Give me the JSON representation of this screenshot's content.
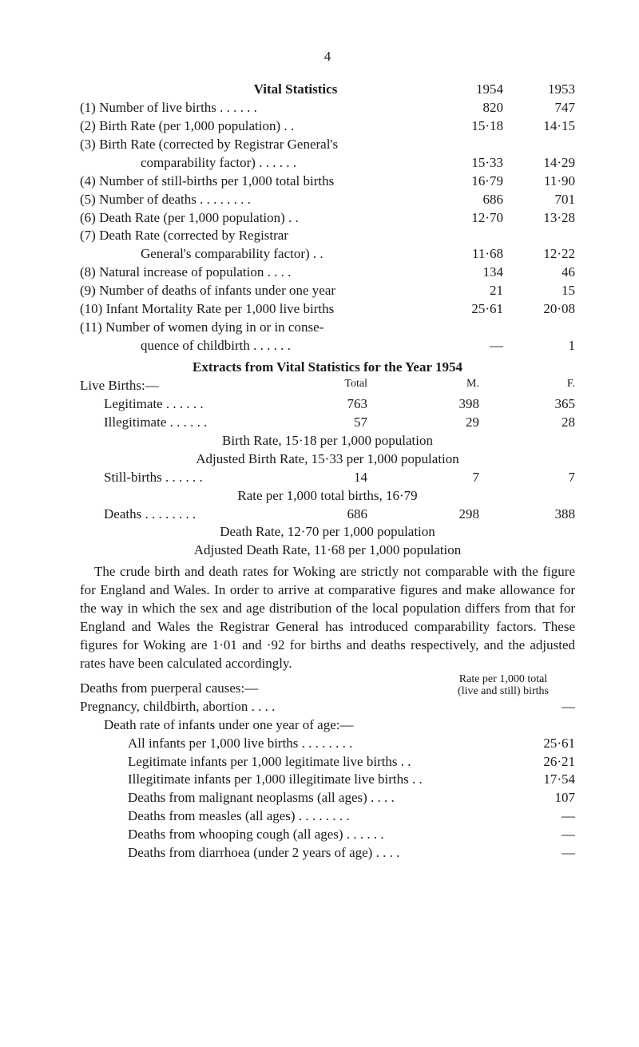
{
  "page_number": "4",
  "vital_stats": {
    "heading": "Vital Statistics",
    "year1": "1954",
    "year2": "1953",
    "rows": [
      {
        "label": "(1) Number of live births   . .   . .   . .",
        "v1": "820",
        "v2": "747"
      },
      {
        "label": "(2) Birth Rate (per 1,000 population)   . .",
        "v1": "15·18",
        "v2": "14·15"
      },
      {
        "label": "(3) Birth Rate (corrected by Registrar General's",
        "v1": "",
        "v2": ""
      },
      {
        "label": "comparability factor)   . .   . .   . .",
        "indent": true,
        "v1": "15·33",
        "v2": "14·29"
      },
      {
        "label": "(4) Number of still-births per 1,000 total births",
        "v1": "16·79",
        "v2": "11·90"
      },
      {
        "label": "(5) Number of deaths   . .   . .   . .   . .",
        "v1": "686",
        "v2": "701"
      },
      {
        "label": "(6) Death Rate (per 1,000 population)   . .",
        "v1": "12·70",
        "v2": "13·28"
      },
      {
        "label": "(7) Death Rate (corrected by Registrar",
        "v1": "",
        "v2": ""
      },
      {
        "label": "General's comparability factor)   . .",
        "indent": true,
        "v1": "11·68",
        "v2": "12·22"
      },
      {
        "label": "(8) Natural increase of population   . .   . .",
        "v1": "134",
        "v2": "46"
      },
      {
        "label": "(9) Number of deaths of infants under one year",
        "v1": "21",
        "v2": "15"
      },
      {
        "label": "(10) Infant Mortality Rate per 1,000 live births",
        "v1": "25·61",
        "v2": "20·08"
      },
      {
        "label": "(11) Number of women dying in or in conse-",
        "v1": "",
        "v2": ""
      },
      {
        "label": "quence of childbirth   . .   . .   . .",
        "indent": true,
        "v1": "—",
        "v2": "1"
      }
    ]
  },
  "extracts_title": "Extracts from Vital Statistics for the Year 1954",
  "live_births": {
    "head_label": "Live Births:—",
    "col_total": "Total",
    "col_m": "M.",
    "col_f": "F.",
    "rows": [
      {
        "label": "Legitimate   . .   . .   . .",
        "c1": "763",
        "c2": "398",
        "c3": "365"
      },
      {
        "label": "Illegitimate   . .   . .   . .",
        "c1": "57",
        "c2": "29",
        "c3": "28"
      }
    ],
    "note1": "Birth Rate, 15·18 per 1,000 population",
    "note2": "Adjusted Birth Rate, 15·33 per 1,000 population",
    "still_row": {
      "label": "Still-births   . .   . .   . .",
      "c1": "14",
      "c2": "7",
      "c3": "7"
    },
    "note3": "Rate per 1,000 total births, 16·79",
    "deaths_row": {
      "label": "Deaths   . .   . .   . .   . .",
      "c1": "686",
      "c2": "298",
      "c3": "388"
    },
    "note4": "Death Rate, 12·70 per 1,000 population",
    "note5": "Adjusted Death Rate, 11·68 per 1,000 population"
  },
  "paragraph": "The crude birth and death rates for Woking are strictly not comparable with the figure for England and Wales. In order to arrive at comparative figures and make allowance for the way in which the sex and age distribution of the local population differs from that for England and Wales the Registrar General has introduced comparability factors. These figures for Woking are 1·01 and ·92 for births and deaths respectively, and the adjusted rates have been calculated accordingly.",
  "deaths_puerperal": {
    "label": "Deaths from puerperal causes:—",
    "right1": "Rate per 1,000 total",
    "right2": "(live and still) births"
  },
  "pregnancy_row": {
    "label": "Pregnancy, childbirth, abortion   . .   . .",
    "value": "—"
  },
  "death_rate_header": "Death rate of infants under one year of age:—",
  "rate_rows": [
    {
      "label": "All infants per 1,000 live births   . .   . .   . .   . .",
      "value": "25·61"
    },
    {
      "label": "Legitimate infants per 1,000 legitimate live births   . .",
      "value": "26·21"
    },
    {
      "label": "Illegitimate infants per 1,000 illegitimate live births   . .",
      "value": "17·54"
    },
    {
      "label": "Deaths from malignant neoplasms (all ages)   . .   . .",
      "value": "107"
    },
    {
      "label": "Deaths from measles (all ages)   . .   . .   . .   . .",
      "value": "—"
    },
    {
      "label": "Deaths from whooping cough (all ages)  . .   . .   . .",
      "value": "—"
    },
    {
      "label": "Deaths from diarrhoea (under 2 years of age)   . .   . .",
      "value": "—"
    }
  ]
}
